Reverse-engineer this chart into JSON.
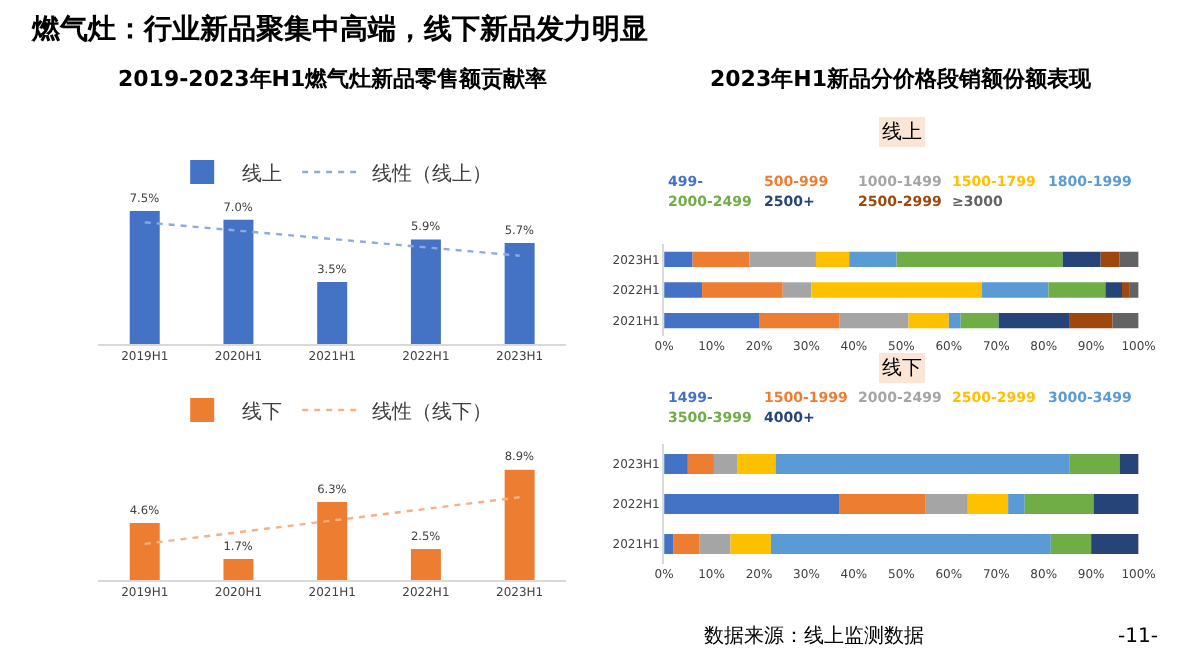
{
  "chart_data": [
    {
      "type": "bar",
      "title": "燃气灶：行业新品聚集中高端，线下新品发力明显",
      "subtitle": "2019-2023年H1燃气灶新品零售额贡献率",
      "categories": [
        "2019H1",
        "2020H1",
        "2021H1",
        "2022H1",
        "2023H1"
      ],
      "series": [
        {
          "name": "线上",
          "color": "#4472c4",
          "values": [
            7.5,
            7.0,
            3.5,
            5.9,
            5.7
          ],
          "value_labels": [
            "7.5%",
            "7.0%",
            "3.5%",
            "5.9%",
            "5.7%"
          ]
        },
        {
          "type": "line",
          "name": "线性（线上）",
          "color": "#8faadc",
          "line_style": "dotted",
          "values": [
            6.86,
            6.39,
            5.92,
            5.45,
            4.98
          ]
        }
      ],
      "legend": "top",
      "tick_labels": "x"
    },
    {
      "type": "bar",
      "categories": [
        "2019H1",
        "2020H1",
        "2021H1",
        "2022H1",
        "2023H1"
      ],
      "series": [
        {
          "name": "线下",
          "color": "#ed7d31",
          "values": [
            4.6,
            1.7,
            6.3,
            2.5,
            8.9
          ],
          "value_labels": [
            "4.6%",
            "1.7%",
            "6.3%",
            "2.5%",
            "8.9%"
          ]
        },
        {
          "type": "line",
          "name": "线性（线下）",
          "color": "#f4b183",
          "line_style": "dotted",
          "values": [
            2.92,
            3.86,
            4.8,
            5.74,
            6.68
          ]
        }
      ],
      "legend": "top",
      "tick_labels": "x"
    },
    {
      "type": "bar",
      "subtitle": "2023年H1新品分价格段销额份额表现",
      "title": "线上",
      "orientation": "horizontal",
      "stacked": true,
      "categories": [
        "2023H1",
        "2022H1",
        "2021H1"
      ],
      "series": [
        {
          "name": "499-",
          "color": "#4472c4",
          "values": [
            6,
            8,
            20
          ]
        },
        {
          "name": "500-999",
          "color": "#ed7d31",
          "values": [
            12,
            17,
            17
          ]
        },
        {
          "name": "1000-1499",
          "color": "#a5a5a5",
          "values": [
            14,
            6,
            14.5
          ]
        },
        {
          "name": "1500-1799",
          "color": "#ffc000",
          "values": [
            7,
            36,
            8.5
          ]
        },
        {
          "name": "1800-1999",
          "color": "#5b9bd5",
          "values": [
            10,
            14,
            2.5
          ]
        },
        {
          "name": "2000-2499",
          "color": "#70ad47",
          "values": [
            35,
            12,
            8
          ]
        },
        {
          "name": "2500+",
          "color": "#264478",
          "values": [
            8,
            3.5,
            15
          ]
        },
        {
          "name": "2500-2999",
          "color": "#9e480e",
          "values": [
            4,
            1.5,
            9
          ]
        },
        {
          "name": "≥3000",
          "color": "#636363",
          "values": [
            4,
            2,
            5.5
          ]
        }
      ],
      "xlim": [
        0,
        100
      ],
      "xticks": [
        {
          "value": 0,
          "label": "0%"
        },
        {
          "value": 10,
          "label": "10%"
        },
        {
          "value": 20,
          "label": "20%"
        },
        {
          "value": 30,
          "label": "30%"
        },
        {
          "value": 40,
          "label": "40%"
        },
        {
          "value": 50,
          "label": "50%"
        },
        {
          "value": 60,
          "label": "60%"
        },
        {
          "value": 70,
          "label": "70%"
        },
        {
          "value": 80,
          "label": "80%"
        },
        {
          "value": 90,
          "label": "90%"
        },
        {
          "value": 100,
          "label": "100%"
        }
      ],
      "legend": "top"
    },
    {
      "type": "bar",
      "title": "线下",
      "orientation": "horizontal",
      "stacked": true,
      "categories": [
        "2023H1",
        "2022H1",
        "2021H1"
      ],
      "series": [
        {
          "name": "1499-",
          "color": "#4472c4",
          "values": [
            5,
            37,
            2
          ]
        },
        {
          "name": "1500-1999",
          "color": "#ed7d31",
          "values": [
            5.5,
            18,
            5.5
          ]
        },
        {
          "name": "2000-2499",
          "color": "#a5a5a5",
          "values": [
            5,
            9,
            6.5
          ]
        },
        {
          "name": "2500-2999",
          "color": "#ffc000",
          "values": [
            8,
            8.5,
            8.5
          ]
        },
        {
          "name": "3000-3499",
          "color": "#5b9bd5",
          "values": [
            62,
            3.5,
            59
          ]
        },
        {
          "name": "3500-3999",
          "color": "#70ad47",
          "values": [
            10.5,
            14.5,
            8.5
          ]
        },
        {
          "name": "4000+",
          "color": "#264478",
          "values": [
            4,
            9.5,
            10
          ]
        }
      ],
      "xlim": [
        0,
        100
      ],
      "xticks": [
        {
          "value": 0,
          "label": "0%"
        },
        {
          "value": 10,
          "label": "10%"
        },
        {
          "value": 20,
          "label": "20%"
        },
        {
          "value": 30,
          "label": "30%"
        },
        {
          "value": 40,
          "label": "40%"
        },
        {
          "value": 50,
          "label": "50%"
        },
        {
          "value": 60,
          "label": "60%"
        },
        {
          "value": 70,
          "label": "70%"
        },
        {
          "value": 80,
          "label": "80%"
        },
        {
          "value": 90,
          "label": "90%"
        },
        {
          "value": 100,
          "label": "100%"
        }
      ],
      "legend": "top",
      "annotations": [
        "数据来源：线上监测数据",
        "-11-"
      ]
    }
  ]
}
